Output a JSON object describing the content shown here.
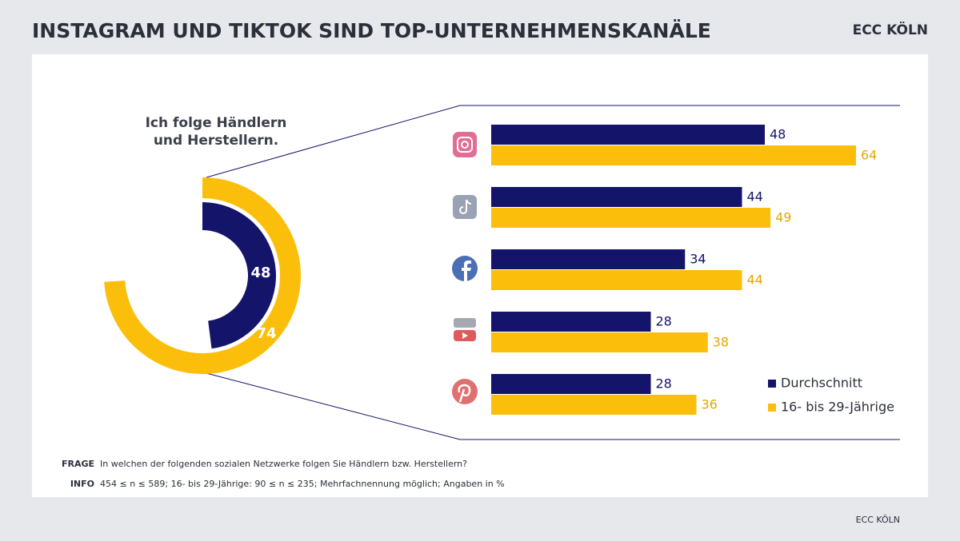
{
  "header": {
    "title": "INSTAGRAM UND TIKTOK SIND TOP-UNTERNEHMENSKANÄLE",
    "brand": "ECC KÖLN"
  },
  "chart_data": [
    {
      "type": "donut",
      "title": "Ich folge Händlern und Herstellern.",
      "values": [
        48,
        74
      ],
      "colors": [
        "#14146b",
        "#fbbf0b"
      ]
    },
    {
      "type": "bar",
      "orientation": "horizontal",
      "categories": [
        null,
        null,
        null,
        null,
        null
      ],
      "series": [
        {
          "name": "Durchschnitt",
          "color": "#14146b",
          "values": [
            48,
            44,
            34,
            28,
            28
          ]
        },
        {
          "name": "16- bis 29-Jährige",
          "color": "#fbbf0b",
          "values": [
            64,
            49,
            44,
            38,
            36
          ]
        }
      ],
      "legend": "bottom-right"
    }
  ],
  "notes": [
    {
      "label": "FRAGE",
      "text": "In welchen der folgenden sozialen Netzwerke folgen Sie Händlern bzw. Herstellern?"
    },
    {
      "label": "INFO",
      "text": "454 ≤ n ≤ 589; 16- bis 29-Jährige: 90 ≤ n ≤ 235; Mehrfachnennung möglich; Angaben in %"
    }
  ],
  "footer": "ECC KÖLN"
}
